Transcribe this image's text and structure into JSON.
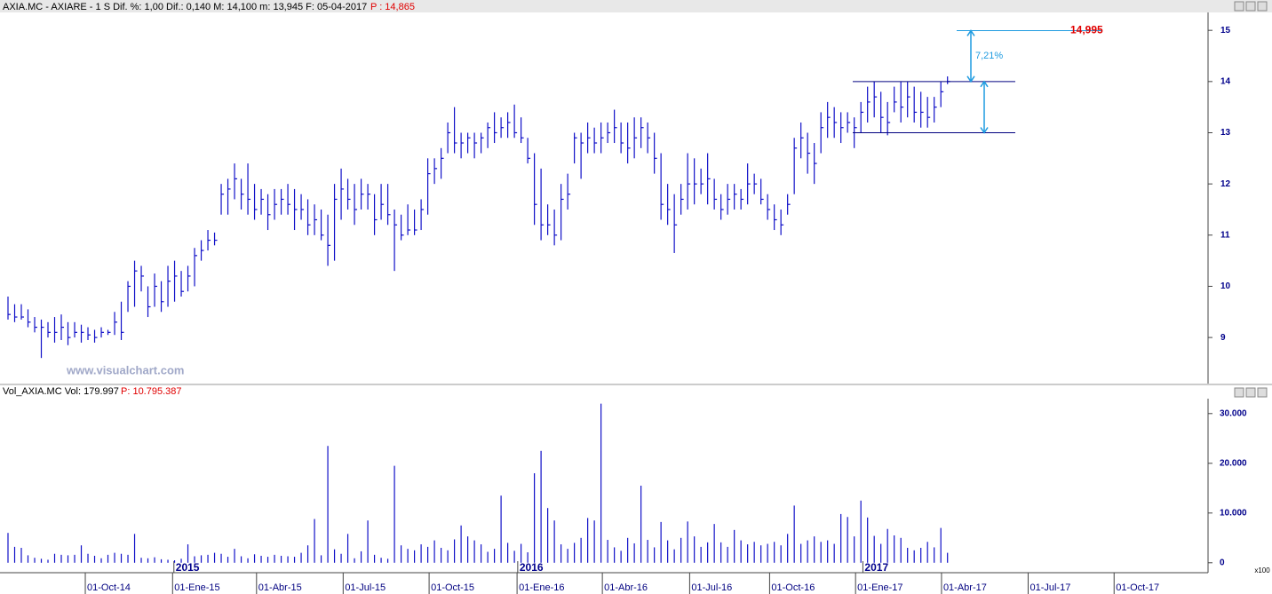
{
  "chart_data": [
    {
      "type": "ohlc",
      "title": "AXIA.MC - AXIARE - 1 S  Dif. %: 1,00  Dif.: 0,140  M: 14,100  m: 13,945  F: 05-04-2017",
      "subtitle": "P : 14,865",
      "watermark": "www.visualchart.com",
      "color": "#1010c8",
      "xlim": [
        -1.2,
        180.1
      ],
      "ylim": [
        8.1,
        15.35
      ],
      "yticks": [
        9,
        10,
        11,
        12,
        13,
        14,
        15
      ],
      "high": [
        9.8,
        9.65,
        9.65,
        9.55,
        9.4,
        9.35,
        9.3,
        9.4,
        9.45,
        9.3,
        9.3,
        9.25,
        9.2,
        9.15,
        9.2,
        9.15,
        9.5,
        9.7,
        10.1,
        10.5,
        10.4,
        10,
        10.25,
        10.1,
        10.4,
        10.5,
        10.3,
        10.4,
        10.75,
        10.9,
        11.1,
        11.05,
        12,
        12.1,
        12.4,
        12.1,
        12.4,
        12,
        11.9,
        11.8,
        11.9,
        11.9,
        12,
        11.9,
        11.8,
        11.7,
        11.6,
        11.5,
        11.4,
        12,
        12.3,
        12.1,
        12,
        12.1,
        12,
        11.8,
        12,
        12,
        11.5,
        11.4,
        11.6,
        11.5,
        11.7,
        12.5,
        12.5,
        12.7,
        13.2,
        13.5,
        13,
        13,
        13,
        13,
        13.2,
        13.4,
        13.3,
        13.4,
        13.55,
        13.3,
        12.9,
        12.6,
        12.3,
        11.6,
        11.5,
        12,
        12.2,
        13,
        13,
        13.2,
        13.1,
        13.2,
        13.2,
        13.45,
        13.2,
        13.2,
        13.3,
        13.3,
        13.2,
        13,
        12.6,
        12,
        11.8,
        12,
        12.6,
        12.5,
        12.3,
        12.6,
        12.1,
        11.8,
        12,
        12,
        11.9,
        12.4,
        12.2,
        12.1,
        11.8,
        11.6,
        11.5,
        11.8,
        12.9,
        13.2,
        13,
        12.8,
        13.4,
        13.6,
        13.5,
        13.4,
        13.4,
        13.3,
        13.6,
        13.9,
        14,
        13.8,
        13.6,
        13.9,
        14,
        14,
        13.9,
        13.8,
        13.7,
        13.7,
        14,
        14.1
      ],
      "low": [
        9.35,
        9.3,
        9.35,
        9.2,
        9.1,
        8.6,
        9,
        8.9,
        8.95,
        8.85,
        9,
        8.9,
        8.95,
        8.9,
        9,
        9.05,
        9.05,
        8.95,
        9.5,
        9.6,
        9.9,
        9.4,
        9.6,
        9.5,
        9.6,
        9.7,
        9.8,
        9.9,
        10,
        10.5,
        10.7,
        10.8,
        11.4,
        11.4,
        11.7,
        11.5,
        11.4,
        11.3,
        11.4,
        11.1,
        11.3,
        11.4,
        11.4,
        11.1,
        11.3,
        11,
        11,
        10.9,
        10.4,
        10.5,
        11.3,
        11.5,
        11.2,
        11.5,
        11.5,
        11,
        11.3,
        11.2,
        10.3,
        10.9,
        11,
        11,
        11.1,
        11.4,
        12,
        12.1,
        12.6,
        12.6,
        12.5,
        12.6,
        12.5,
        12.6,
        12.7,
        12.8,
        12.9,
        12.9,
        12.9,
        12.8,
        12.4,
        11.2,
        10.9,
        11,
        10.8,
        10.9,
        11.5,
        12.4,
        12.1,
        12.6,
        12.6,
        12.6,
        12.8,
        12.8,
        12.6,
        12.4,
        12.5,
        12.7,
        12.6,
        12.2,
        11.3,
        11.2,
        10.65,
        11.4,
        11.5,
        11.6,
        11.8,
        11.6,
        11.5,
        11.3,
        11.4,
        11.5,
        11.5,
        11.6,
        11.8,
        11.6,
        11.3,
        11.1,
        11,
        11.4,
        11.8,
        12.5,
        12.2,
        12,
        12.6,
        12.9,
        12.9,
        12.8,
        13,
        12.7,
        13,
        13.2,
        13.3,
        13,
        12.95,
        13.4,
        13.2,
        13.3,
        13.2,
        13.1,
        13.1,
        13.2,
        13.5,
        13.95
      ],
      "close": [
        9.45,
        9.4,
        9.4,
        9.3,
        9.2,
        9.2,
        9.1,
        9.1,
        9.2,
        9,
        9.1,
        9.1,
        9.05,
        9,
        9.1,
        9.1,
        9.3,
        9.1,
        10,
        10.3,
        10.2,
        9.6,
        10,
        9.7,
        10.1,
        10.2,
        9.9,
        10.2,
        10.6,
        10.7,
        10.9,
        10.9,
        11.8,
        11.9,
        12.1,
        11.8,
        11.7,
        11.5,
        11.7,
        11.4,
        11.6,
        11.7,
        11.6,
        11.5,
        11.5,
        11.2,
        11.3,
        11,
        10.8,
        11.7,
        11.9,
        11.7,
        11.5,
        11.8,
        11.8,
        11.3,
        11.6,
        11.4,
        11.2,
        11,
        11.1,
        11.1,
        11.5,
        12.2,
        12.3,
        12.5,
        13,
        12.8,
        12.8,
        12.9,
        12.8,
        12.9,
        13.1,
        13,
        13.1,
        13.2,
        13,
        12.9,
        12.5,
        11.6,
        11.2,
        11.2,
        11,
        11.7,
        11.8,
        12.9,
        12.8,
        12.9,
        12.8,
        12.9,
        13,
        13.1,
        12.8,
        12.7,
        12.9,
        13.1,
        12.9,
        12.5,
        11.6,
        11.5,
        11.2,
        11.7,
        12,
        12,
        12,
        12.1,
        11.7,
        11.5,
        11.7,
        11.8,
        11.7,
        12,
        12,
        11.7,
        11.5,
        11.3,
        11.2,
        11.6,
        12.7,
        12.9,
        12.6,
        12.4,
        13.1,
        13.3,
        13.2,
        13.1,
        13.2,
        13.1,
        13.4,
        13.6,
        13.7,
        13.3,
        13.2,
        13.6,
        13.5,
        13.7,
        13.4,
        13.4,
        13.3,
        13.5,
        13.8,
        14
      ],
      "annotations": {
        "range_lines": [
          14,
          13
        ],
        "line_color": "#000080",
        "arrow_color": "#1e9be0",
        "target_color": "#e00000",
        "target": {
          "value": 14.995,
          "label": "14,995"
        },
        "pct_label": "7,21%"
      }
    },
    {
      "type": "bar",
      "title": "Vol_AXIA.MC  Vol: 179.997",
      "subtitle": "P: 10.795.387",
      "unit_label": "x100",
      "color": "#1010c8",
      "ylim": [
        -2000,
        33000
      ],
      "yticks": [
        {
          "value": 0,
          "label": "0"
        },
        {
          "value": 10000,
          "label": "10.000"
        },
        {
          "value": 20000,
          "label": "20.000"
        },
        {
          "value": 30000,
          "label": "30.000"
        }
      ],
      "values": [
        6000,
        3200,
        3000,
        1500,
        1000,
        800,
        600,
        1800,
        1600,
        1500,
        1600,
        3500,
        1800,
        1400,
        900,
        1600,
        2000,
        1800,
        1600,
        5800,
        1000,
        900,
        1100,
        700,
        600,
        500,
        800,
        3700,
        1300,
        1500,
        1600,
        2000,
        1800,
        1200,
        2800,
        1300,
        900,
        1700,
        1400,
        1200,
        1600,
        1400,
        1300,
        1200,
        2000,
        3500,
        8800,
        1500,
        23500,
        2700,
        1800,
        5800,
        900,
        2300,
        8500,
        1600,
        1000,
        800,
        19500,
        3500,
        2800,
        2500,
        3700,
        3200,
        4500,
        3000,
        2500,
        4700,
        7500,
        5300,
        4500,
        3700,
        2200,
        2800,
        13500,
        4000,
        2400,
        3800,
        2100,
        18000,
        22500,
        11000,
        8500,
        3700,
        2800,
        4000,
        5000,
        9000,
        8500,
        32000,
        4600,
        3100,
        2400,
        5000,
        3900,
        15500,
        4600,
        3100,
        8200,
        4500,
        2700,
        5000,
        8300,
        5300,
        3200,
        4100,
        7800,
        4100,
        3200,
        6600,
        4500,
        3700,
        4200,
        3500,
        3800,
        4200,
        3500,
        5800,
        11500,
        3800,
        4500,
        5300,
        4200,
        4500,
        3800,
        9800,
        9200,
        5300,
        12500,
        9100,
        5400,
        3800,
        6800,
        5500,
        5000,
        3000,
        2500,
        3000,
        4200,
        3100,
        7000,
        2000
      ],
      "xticks": [
        {
          "value": 11.6,
          "label": "01-Oct-14"
        },
        {
          "value": 24.7,
          "label": "01-Ene-15"
        },
        {
          "value": 37.3,
          "label": "01-Abr-15"
        },
        {
          "value": 50.3,
          "label": "01-Jul-15"
        },
        {
          "value": 63.2,
          "label": "01-Oct-15"
        },
        {
          "value": 76.4,
          "label": "01-Ene-16"
        },
        {
          "value": 89.2,
          "label": "01-Abr-16"
        },
        {
          "value": 102.3,
          "label": "01-Jul-16"
        },
        {
          "value": 114.3,
          "label": "01-Oct-16"
        },
        {
          "value": 127.2,
          "label": "01-Ene-17"
        },
        {
          "value": 140.1,
          "label": "01-Abr-17"
        },
        {
          "value": 153.1,
          "label": "01-Jul-17"
        },
        {
          "value": 166,
          "label": "01-Oct-17"
        }
      ],
      "year_labels": [
        {
          "value": 24.9,
          "label": "2015"
        },
        {
          "value": 76.5,
          "label": "2016"
        },
        {
          "value": 128.3,
          "label": "2017"
        }
      ]
    }
  ]
}
